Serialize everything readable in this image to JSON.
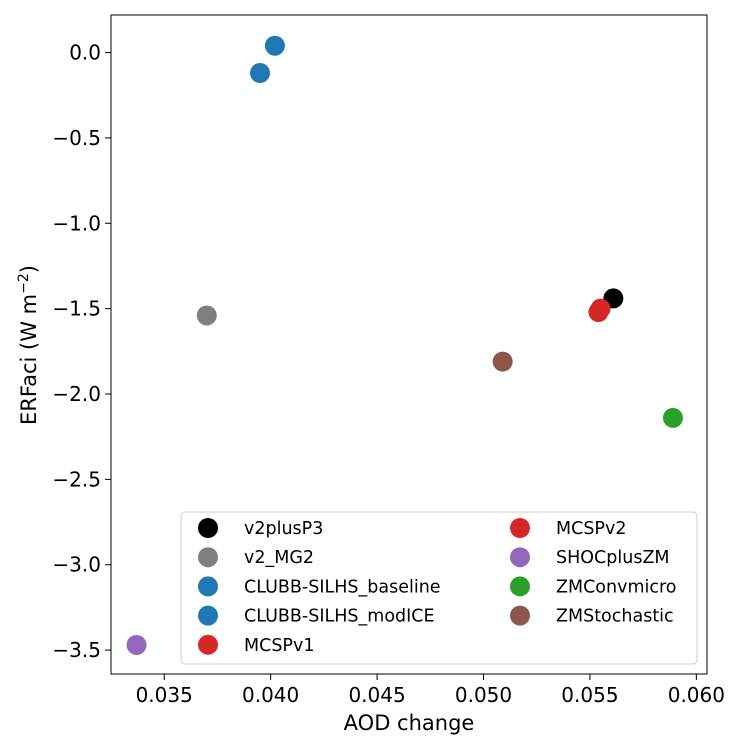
{
  "chart_data": {
    "type": "scatter",
    "title": "",
    "xlabel": "AOD change",
    "ylabel": "ERFaci (W m",
    "ylabel_sup": "−2",
    "ylabel_tail": ")",
    "xlim": [
      0.0325,
      0.0605
    ],
    "ylim": [
      -3.64,
      0.22
    ],
    "xticks": [
      0.035,
      0.04,
      0.045,
      0.05,
      0.055,
      0.06
    ],
    "xtick_labels": [
      "0.035",
      "0.040",
      "0.045",
      "0.050",
      "0.055",
      "0.060"
    ],
    "yticks": [
      0.0,
      -0.5,
      -1.0,
      -1.5,
      -2.0,
      -2.5,
      -3.0,
      -3.5
    ],
    "ytick_labels": [
      "0.0",
      "−0.5",
      "−1.0",
      "−1.5",
      "−2.0",
      "−2.5",
      "−3.0",
      "−3.5"
    ],
    "grid": false,
    "legend_position": "lower-right",
    "series": [
      {
        "name": "v2plusP3",
        "color": "#000000",
        "x": 0.0561,
        "y": -1.44
      },
      {
        "name": "v2_MG2",
        "color": "#7f7f7f",
        "x": 0.037,
        "y": -1.54
      },
      {
        "name": "CLUBB-SILHS_baseline",
        "color": "#1f77b4",
        "x": 0.0395,
        "y": -0.12
      },
      {
        "name": "CLUBB-SILHS_modICE",
        "color": "#1f77b4",
        "x": 0.0402,
        "y": 0.04
      },
      {
        "name": "MCSPv1",
        "color": "#d62728",
        "x": 0.0555,
        "y": -1.5
      },
      {
        "name": "MCSPv2",
        "color": "#d62728",
        "x": 0.0554,
        "y": -1.52
      },
      {
        "name": "SHOCplusZM",
        "color": "#9467bd",
        "x": 0.0337,
        "y": -3.47
      },
      {
        "name": "ZMConvmicro",
        "color": "#2ca02c",
        "x": 0.0589,
        "y": -2.14
      },
      {
        "name": "ZMStochastic",
        "color": "#8c564b",
        "x": 0.0509,
        "y": -1.81
      }
    ]
  }
}
